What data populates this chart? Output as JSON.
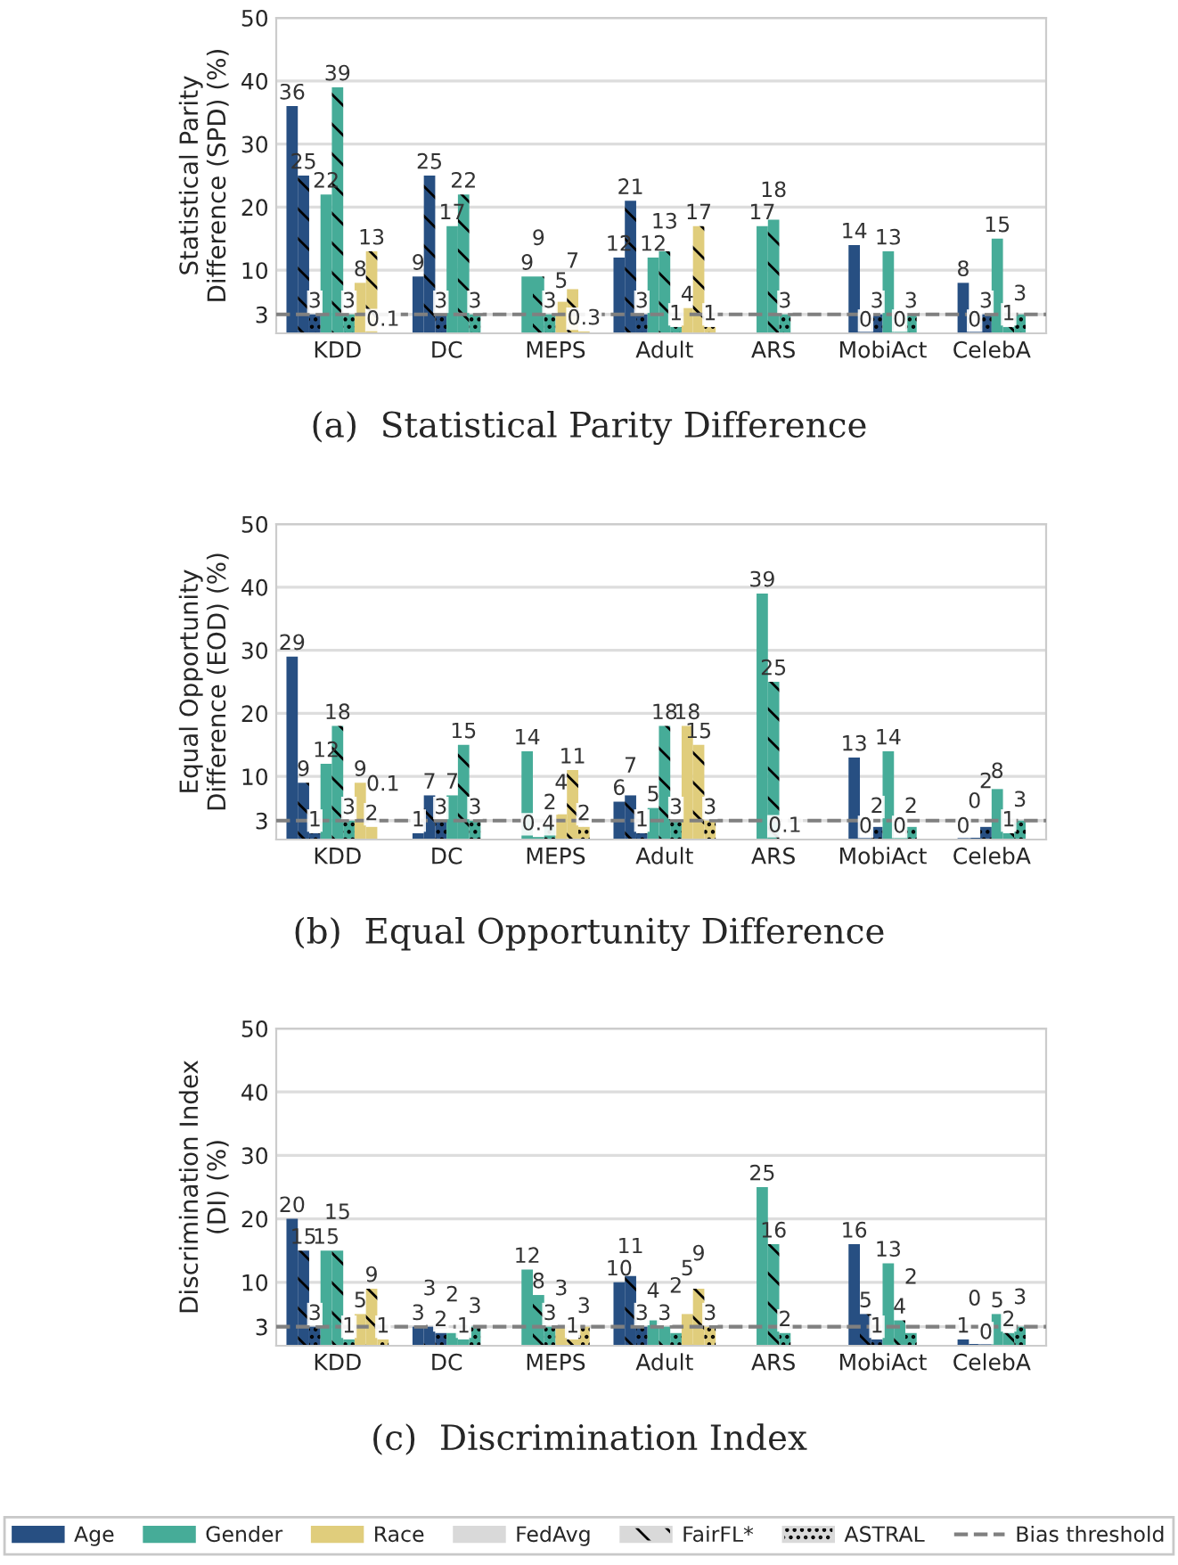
{
  "chart_data": [
    {
      "type": "bar",
      "title": "(a)  Statistical Parity Difference",
      "ylabel": "Statistical Parity\nDifference (SPD) (%)",
      "categories": [
        "KDD",
        "DC",
        "MEPS",
        "Adult",
        "ARS",
        "MobiAct",
        "CelebA"
      ],
      "ylim": [
        0,
        50
      ],
      "yticks": [
        3,
        10,
        20,
        30,
        40,
        50
      ],
      "grid": "y",
      "data_labels": true,
      "legend": "bottom",
      "ref_lines": [
        {
          "axis": "y",
          "value": 3,
          "label": "Bias threshold",
          "color": "#808080",
          "line_style": "dashed"
        }
      ],
      "series": [
        {
          "name": "Age",
          "color": "#274f82",
          "line_style": "solid",
          "values": [
            36,
            9,
            null,
            12,
            null,
            14,
            8
          ]
        },
        {
          "color": "#274f82",
          "line_style": "dashed",
          "values": [
            25,
            25,
            null,
            21,
            null,
            0,
            0
          ]
        },
        {
          "color": "#274f82",
          "line_style": "dotted",
          "values": [
            3,
            3,
            null,
            3,
            null,
            3,
            3
          ]
        },
        {
          "name": "Gender",
          "color": "#46ac98",
          "line_style": "solid",
          "values": [
            22,
            17,
            9,
            12,
            17,
            13,
            15
          ]
        },
        {
          "color": "#46ac98",
          "line_style": "dashed",
          "values": [
            39,
            22,
            9,
            13,
            18,
            0,
            1
          ]
        },
        {
          "color": "#46ac98",
          "line_style": "dotted",
          "values": [
            3,
            3,
            3,
            1,
            3,
            3,
            3
          ]
        },
        {
          "name": "Race",
          "color": "#e0cd7c",
          "line_style": "solid",
          "values": [
            8,
            null,
            5,
            4,
            null,
            null,
            null
          ]
        },
        {
          "color": "#e0cd7c",
          "line_style": "dashed",
          "values": [
            13,
            null,
            7,
            17,
            null,
            null,
            null
          ]
        },
        {
          "color": "#e0cd7c",
          "line_style": "dotted",
          "values": [
            0.1,
            null,
            0.3,
            1,
            null,
            null,
            null
          ]
        },
        {
          "name": "FedAvg",
          "color": "#d9d9d9",
          "line_style": "solid",
          "values": [
            null,
            null,
            null,
            null,
            null,
            null,
            null
          ]
        },
        {
          "name": "FairFL*",
          "color": "#d9d9d9",
          "line_style": "dashed",
          "values": [
            null,
            null,
            null,
            null,
            null,
            null,
            null
          ]
        },
        {
          "name": "ASTRAL",
          "color": "#d9d9d9",
          "line_style": "dotted",
          "values": [
            null,
            null,
            null,
            null,
            null,
            null,
            null
          ]
        }
      ]
    },
    {
      "type": "bar",
      "title": "(b)  Equal Opportunity Difference",
      "ylabel": "Equal Opportunity\nDifference (EOD) (%)",
      "categories": [
        "KDD",
        "DC",
        "MEPS",
        "Adult",
        "ARS",
        "MobiAct",
        "CelebA"
      ],
      "ylim": [
        0,
        50
      ],
      "yticks": [
        3,
        10,
        20,
        30,
        40,
        50
      ],
      "grid": "y",
      "data_labels": true,
      "ref_lines": [
        {
          "axis": "y",
          "value": 3,
          "color": "#808080",
          "line_style": "dashed"
        }
      ],
      "series": [
        {
          "color": "#274f82",
          "line_style": "solid",
          "values": [
            29,
            1,
            null,
            6,
            null,
            13,
            0
          ]
        },
        {
          "color": "#274f82",
          "line_style": "dashed",
          "values": [
            9,
            7,
            null,
            7,
            null,
            0,
            0
          ]
        },
        {
          "color": "#274f82",
          "line_style": "dotted",
          "values": [
            1,
            3,
            null,
            1,
            null,
            2,
            2
          ]
        },
        {
          "color": "#46ac98",
          "line_style": "solid",
          "values": [
            12,
            7,
            14,
            5,
            39,
            14,
            8
          ]
        },
        {
          "color": "#46ac98",
          "line_style": "dashed",
          "values": [
            18,
            15,
            0.4,
            18,
            25,
            0,
            1
          ]
        },
        {
          "color": "#46ac98",
          "line_style": "dotted",
          "values": [
            3,
            3,
            2,
            3,
            0.1,
            2,
            3
          ]
        },
        {
          "color": "#e0cd7c",
          "line_style": "solid",
          "values": [
            9,
            null,
            4,
            18,
            null,
            null,
            null
          ]
        },
        {
          "color": "#e0cd7c",
          "line_style": "dashed",
          "values": [
            2,
            null,
            11,
            15,
            null,
            null,
            null
          ]
        },
        {
          "color": "#e0cd7c",
          "line_style": "dotted",
          "values": [
            0.1,
            null,
            2,
            3,
            null,
            null,
            null
          ]
        }
      ]
    },
    {
      "type": "bar",
      "title": "(c)  Discrimination Index",
      "ylabel": "Discrimination Index\n(DI) (%)",
      "categories": [
        "KDD",
        "DC",
        "MEPS",
        "Adult",
        "ARS",
        "MobiAct",
        "CelebA"
      ],
      "ylim": [
        0,
        50
      ],
      "yticks": [
        3,
        10,
        20,
        30,
        40,
        50
      ],
      "grid": "y",
      "data_labels": true,
      "ref_lines": [
        {
          "axis": "y",
          "value": 3,
          "color": "#808080",
          "line_style": "dashed"
        }
      ],
      "series": [
        {
          "color": "#274f82",
          "line_style": "solid",
          "values": [
            20,
            3,
            null,
            10,
            null,
            16,
            1
          ]
        },
        {
          "color": "#274f82",
          "line_style": "dashed",
          "values": [
            15,
            3,
            null,
            11,
            null,
            5,
            0
          ]
        },
        {
          "color": "#274f82",
          "line_style": "dotted",
          "values": [
            3,
            2,
            null,
            3,
            null,
            1,
            0
          ]
        },
        {
          "color": "#46ac98",
          "line_style": "solid",
          "values": [
            15,
            2,
            12,
            4,
            25,
            13,
            5
          ]
        },
        {
          "color": "#46ac98",
          "line_style": "dashed",
          "values": [
            15,
            1,
            8,
            3,
            16,
            4,
            2
          ]
        },
        {
          "color": "#46ac98",
          "line_style": "dotted",
          "values": [
            1,
            3,
            3,
            2,
            2,
            2,
            3
          ]
        },
        {
          "color": "#e0cd7c",
          "line_style": "solid",
          "values": [
            5,
            null,
            3,
            5,
            null,
            null,
            null
          ]
        },
        {
          "color": "#e0cd7c",
          "line_style": "dashed",
          "values": [
            9,
            null,
            1,
            9,
            null,
            null,
            null
          ]
        },
        {
          "color": "#e0cd7c",
          "line_style": "dotted",
          "values": [
            1,
            null,
            3,
            3,
            null,
            null,
            null
          ]
        }
      ]
    }
  ]
}
